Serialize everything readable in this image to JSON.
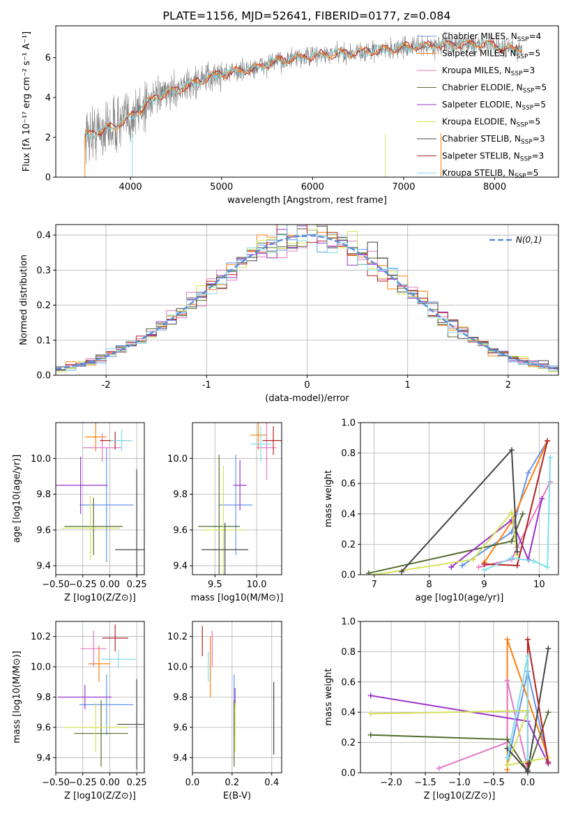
{
  "title": "PLATE=1156, MJD=52641, FIBERID=0177, z=0.084",
  "colors": [
    "#6495ed",
    "#ff7f0e",
    "#e377c2",
    "#556b2f",
    "#9932cc",
    "#d4e157",
    "#444444",
    "#b22222",
    "#80deea"
  ],
  "chart_data": [
    {
      "id": "spectrum",
      "type": "line",
      "title": "PLATE=1156, MJD=52641, FIBERID=0177, z=0.084",
      "xlabel": "wavelength [Angstrom, rest frame]",
      "ylabel": "Flux [fλ 10⁻¹⁷ erg cm⁻² s⁻¹ A⁻¹]",
      "xlim": [
        3180,
        8700
      ],
      "ylim": [
        0,
        7.6
      ],
      "xticks": [
        4000,
        5000,
        6000,
        7000,
        8000
      ],
      "yticks": [
        0,
        2,
        4,
        6
      ],
      "legend": [
        "Chabrier MILES, N_SSP=4",
        "Salpeter MILES, N_SSP=5",
        "Kroupa MILES, N_SSP=3",
        "Chabrier ELODIE, N_SSP=5",
        "Salpeter ELODIE, N_SSP=5",
        "Kroupa ELODIE, N_SSP=5",
        "Chabrier STELIB, N_SSP=3",
        "Salpeter STELIB, N_SSP=3",
        "Kroupa STELIB, N_SSP=5"
      ],
      "legend_placement": "upper right",
      "continuum": {
        "x": [
          3500,
          3800,
          4000,
          4200,
          4500,
          4800,
          5000,
          5300,
          5600,
          6000,
          6300,
          6600,
          7000,
          7300,
          7600,
          7900,
          8200,
          8300
        ],
        "y": [
          2.1,
          2.5,
          3.0,
          3.8,
          4.4,
          4.9,
          5.2,
          5.4,
          5.8,
          6.1,
          6.2,
          6.3,
          6.5,
          6.6,
          6.65,
          6.7,
          6.4,
          6.5
        ]
      },
      "observed_color": "#808080",
      "model_color": "#80deea"
    },
    {
      "id": "residuals",
      "type": "histogram",
      "xlabel": "(data-model)/error",
      "ylabel": "Normed distribution",
      "xlim": [
        -2.5,
        2.5
      ],
      "ylim": [
        0,
        0.43
      ],
      "xticks": [
        -2,
        -1,
        0,
        1,
        2
      ],
      "yticks": [
        0.0,
        0.1,
        0.2,
        0.3,
        0.4
      ],
      "reference": "N(0,1)",
      "reference_color": "#5b8dd9",
      "legend_placement": "upper right",
      "grid": true
    },
    {
      "id": "z_age",
      "type": "errorbar",
      "xlabel": "Z [log10(Z/Z⊙)]",
      "ylabel": "age  [log10(age/yr)]",
      "xlim": [
        -0.5,
        0.32
      ],
      "ylim": [
        9.35,
        10.2
      ],
      "xticks": [
        -0.5,
        -0.25,
        0.0,
        0.25
      ],
      "xtick_labels": [
        "−0.50",
        "−0.25",
        "0.00",
        "0.25"
      ],
      "yticks": [
        9.4,
        9.6,
        9.8,
        10.0
      ],
      "grid": true,
      "points": [
        {
          "x": -0.03,
          "y": 9.74,
          "xerr": 0.25,
          "yerr": 0.32,
          "c": 0
        },
        {
          "x": -0.13,
          "y": 10.12,
          "xerr": 0.1,
          "yerr": 0.08,
          "c": 1
        },
        {
          "x": -0.07,
          "y": 10.06,
          "xerr": 0.18,
          "yerr": 0.08,
          "c": 2
        },
        {
          "x": -0.15,
          "y": 9.62,
          "xerr": 0.27,
          "yerr": 0.16,
          "c": 3
        },
        {
          "x": -0.27,
          "y": 9.85,
          "xerr": 0.25,
          "yerr": 0.16,
          "c": 4
        },
        {
          "x": -0.18,
          "y": 9.61,
          "xerr": 0.27,
          "yerr": 0.18,
          "c": 5
        },
        {
          "x": 0.25,
          "y": 9.49,
          "xerr": 0.2,
          "yerr": 0.45,
          "c": 6
        },
        {
          "x": 0.05,
          "y": 10.1,
          "xerr": 0.14,
          "yerr": 0.05,
          "c": 7
        },
        {
          "x": 0.11,
          "y": 10.1,
          "xerr": 0.1,
          "yerr": 0.06,
          "c": 8
        }
      ]
    },
    {
      "id": "mass_age",
      "type": "errorbar",
      "xlabel": "mass [log10(M/M⊙)]",
      "ylabel": "",
      "xlim": [
        9.23,
        10.3
      ],
      "ylim": [
        9.35,
        10.2
      ],
      "xticks": [
        9.5,
        10.0
      ],
      "xtick_labels": [
        "9.5",
        "10.0"
      ],
      "yticks": [
        9.4,
        9.6,
        9.8,
        10.0
      ],
      "grid": true,
      "points": [
        {
          "x": 9.75,
          "y": 9.74,
          "xerr": 0.2,
          "yerr": 0.28,
          "c": 0
        },
        {
          "x": 10.02,
          "y": 10.13,
          "xerr": 0.1,
          "yerr": 0.08,
          "c": 1
        },
        {
          "x": 10.12,
          "y": 10.06,
          "xerr": 0.12,
          "yerr": 0.18,
          "c": 2
        },
        {
          "x": 9.55,
          "y": 9.62,
          "xerr": 0.25,
          "yerr": 0.4,
          "c": 3
        },
        {
          "x": 9.8,
          "y": 9.85,
          "xerr": 0.08,
          "yerr": 0.14,
          "c": 4
        },
        {
          "x": 9.6,
          "y": 9.6,
          "xerr": 0.25,
          "yerr": 0.36,
          "c": 5
        },
        {
          "x": 9.62,
          "y": 9.49,
          "xerr": 0.28,
          "yerr": 0.15,
          "c": 6
        },
        {
          "x": 10.2,
          "y": 10.1,
          "xerr": 0.13,
          "yerr": 0.08,
          "c": 7
        },
        {
          "x": 10.05,
          "y": 10.08,
          "xerr": 0.12,
          "yerr": 0.1,
          "c": 8
        }
      ]
    },
    {
      "id": "weight_age",
      "type": "line",
      "xlabel": "age  [log10(age/yr)]",
      "ylabel": "mass weight",
      "xlim": [
        6.75,
        10.35
      ],
      "ylim": [
        0,
        1.0
      ],
      "xticks": [
        7,
        8,
        9,
        10
      ],
      "xtick_labels": [
        "7",
        "8",
        "9",
        "10"
      ],
      "yticks": [
        0.0,
        0.2,
        0.4,
        0.6,
        0.8,
        1.0
      ],
      "grid": true,
      "series": [
        {
          "c": 0,
          "x": [
            8.6,
            9.5,
            9.8,
            10.15
          ],
          "y": [
            0.06,
            0.28,
            0.67,
            0.88
          ]
        },
        {
          "c": 1,
          "x": [
            9.0,
            9.5,
            10.15
          ],
          "y": [
            0.08,
            0.35,
            0.88
          ]
        },
        {
          "c": 2,
          "x": [
            8.9,
            9.5,
            9.6,
            10.2
          ],
          "y": [
            0.05,
            0.1,
            0.18,
            0.61
          ]
        },
        {
          "c": 3,
          "x": [
            6.9,
            9.5,
            9.7
          ],
          "y": [
            0.01,
            0.22,
            0.4
          ]
        },
        {
          "c": 4,
          "x": [
            8.4,
            9.5,
            9.8,
            10.05
          ],
          "y": [
            0.05,
            0.36,
            0.1,
            0.5
          ]
        },
        {
          "c": 5,
          "x": [
            7.0,
            8.8,
            9.5,
            9.6
          ],
          "y": [
            0.0,
            0.1,
            0.41,
            0.13
          ]
        },
        {
          "c": 6,
          "x": [
            7.5,
            9.5,
            9.6
          ],
          "y": [
            0.02,
            0.82,
            0.15
          ]
        },
        {
          "c": 7,
          "x": [
            9.0,
            9.6,
            10.15
          ],
          "y": [
            0.07,
            0.06,
            0.88
          ]
        },
        {
          "c": 8,
          "x": [
            9.0,
            9.5,
            9.9,
            10.15,
            10.2
          ],
          "y": [
            0.03,
            0.11,
            0.09,
            0.05,
            0.77
          ]
        }
      ]
    },
    {
      "id": "z_mass",
      "type": "errorbar",
      "xlabel": "Z [log10(Z/Z⊙)]",
      "ylabel": "mass [log10(M/M⊙)]",
      "xlim": [
        -0.5,
        0.32
      ],
      "ylim": [
        9.3,
        10.3
      ],
      "xticks": [
        -0.5,
        -0.25,
        0.0,
        0.25
      ],
      "xtick_labels": [
        "−0.50",
        "−0.25",
        "0.00",
        "0.25"
      ],
      "yticks": [
        9.4,
        9.6,
        9.8,
        10.0,
        10.2
      ],
      "grid": true,
      "points": [
        {
          "x": -0.03,
          "y": 9.75,
          "xerr": 0.25,
          "yerr": 0.2,
          "c": 0
        },
        {
          "x": -0.1,
          "y": 10.02,
          "xerr": 0.1,
          "yerr": 0.12,
          "c": 1
        },
        {
          "x": -0.15,
          "y": 10.12,
          "xerr": 0.12,
          "yerr": 0.12,
          "c": 2
        },
        {
          "x": -0.08,
          "y": 9.56,
          "xerr": 0.25,
          "yerr": 0.22,
          "c": 3
        },
        {
          "x": -0.23,
          "y": 9.8,
          "xerr": 0.25,
          "yerr": 0.08,
          "c": 4
        },
        {
          "x": -0.13,
          "y": 9.6,
          "xerr": 0.3,
          "yerr": 0.16,
          "c": 5
        },
        {
          "x": 0.25,
          "y": 9.62,
          "xerr": 0.18,
          "yerr": 0.3,
          "c": 6
        },
        {
          "x": 0.05,
          "y": 10.19,
          "xerr": 0.12,
          "yerr": 0.09,
          "c": 7
        },
        {
          "x": 0.08,
          "y": 10.05,
          "xerr": 0.16,
          "yerr": 0.06,
          "c": 8
        }
      ]
    },
    {
      "id": "ebv_mass",
      "type": "errorbar",
      "xlabel": "E(B-V)",
      "ylabel": "",
      "xlim": [
        0.0,
        0.45
      ],
      "ylim": [
        9.3,
        10.3
      ],
      "xticks": [
        0.0,
        0.2,
        0.4
      ],
      "xtick_labels": [
        "0.0",
        "0.2",
        "0.4"
      ],
      "yticks": [
        9.4,
        9.6,
        9.8,
        10.0,
        10.2
      ],
      "grid": true,
      "points": [
        {
          "x": 0.21,
          "y": 9.75,
          "xerr": 0,
          "yerr": 0.2,
          "c": 0
        },
        {
          "x": 0.09,
          "y": 10.0,
          "xerr": 0,
          "yerr": 0.2,
          "c": 1
        },
        {
          "x": 0.1,
          "y": 10.12,
          "xerr": 0,
          "yerr": 0.12,
          "c": 2
        },
        {
          "x": 0.21,
          "y": 9.56,
          "xerr": 0,
          "yerr": 0.22,
          "c": 3
        },
        {
          "x": 0.215,
          "y": 9.8,
          "xerr": 0,
          "yerr": 0.06,
          "c": 4
        },
        {
          "x": 0.215,
          "y": 9.6,
          "xerr": 0,
          "yerr": 0.16,
          "c": 5
        },
        {
          "x": 0.41,
          "y": 9.66,
          "xerr": 0,
          "yerr": 0.24,
          "c": 6
        },
        {
          "x": 0.05,
          "y": 10.17,
          "xerr": 0,
          "yerr": 0.1,
          "c": 7
        },
        {
          "x": 0.08,
          "y": 10.0,
          "xerr": 0,
          "yerr": 0.1,
          "c": 8
        }
      ]
    },
    {
      "id": "weight_z",
      "type": "line",
      "xlabel": "Z [log10(Z/Z⊙)]",
      "ylabel": "mass weight",
      "xlim": [
        -2.45,
        0.45
      ],
      "ylim": [
        0,
        1.0
      ],
      "xticks": [
        -2.0,
        -1.5,
        -1.0,
        -0.5,
        0.0
      ],
      "xtick_labels": [
        "−2.0",
        "−1.5",
        "−1.0",
        "−0.5",
        "0.0"
      ],
      "yticks": [
        0.0,
        0.2,
        0.4,
        0.6,
        0.8,
        1.0
      ],
      "grid": true,
      "series": [
        {
          "c": 0,
          "x": [
            -0.3,
            0.0,
            0.3
          ],
          "y": [
            0.05,
            0.67,
            0.07
          ]
        },
        {
          "c": 1,
          "x": [
            -0.3,
            -0.3,
            0.3
          ],
          "y": [
            0.02,
            0.88,
            0.1
          ]
        },
        {
          "c": 2,
          "x": [
            -1.3,
            -0.3,
            -0.3,
            0.0
          ],
          "y": [
            0.03,
            0.2,
            0.61,
            0.02
          ]
        },
        {
          "c": 3,
          "x": [
            -2.3,
            -0.3,
            0.0,
            0.3
          ],
          "y": [
            0.25,
            0.22,
            0.01,
            0.4
          ]
        },
        {
          "c": 4,
          "x": [
            -2.3,
            0.0,
            0.3
          ],
          "y": [
            0.51,
            0.34,
            0.06
          ]
        },
        {
          "c": 5,
          "x": [
            -2.3,
            0.0,
            -0.3,
            0.3
          ],
          "y": [
            0.39,
            0.41,
            0.05,
            0.1
          ]
        },
        {
          "c": 6,
          "x": [
            -0.3,
            0.0,
            0.3
          ],
          "y": [
            0.16,
            0.01,
            0.82
          ]
        },
        {
          "c": 7,
          "x": [
            0.0,
            0.0,
            0.3
          ],
          "y": [
            0.06,
            0.88,
            0.07
          ]
        },
        {
          "c": 8,
          "x": [
            -0.3,
            0.0,
            0.0
          ],
          "y": [
            0.1,
            0.77,
            0.09
          ]
        }
      ]
    }
  ]
}
